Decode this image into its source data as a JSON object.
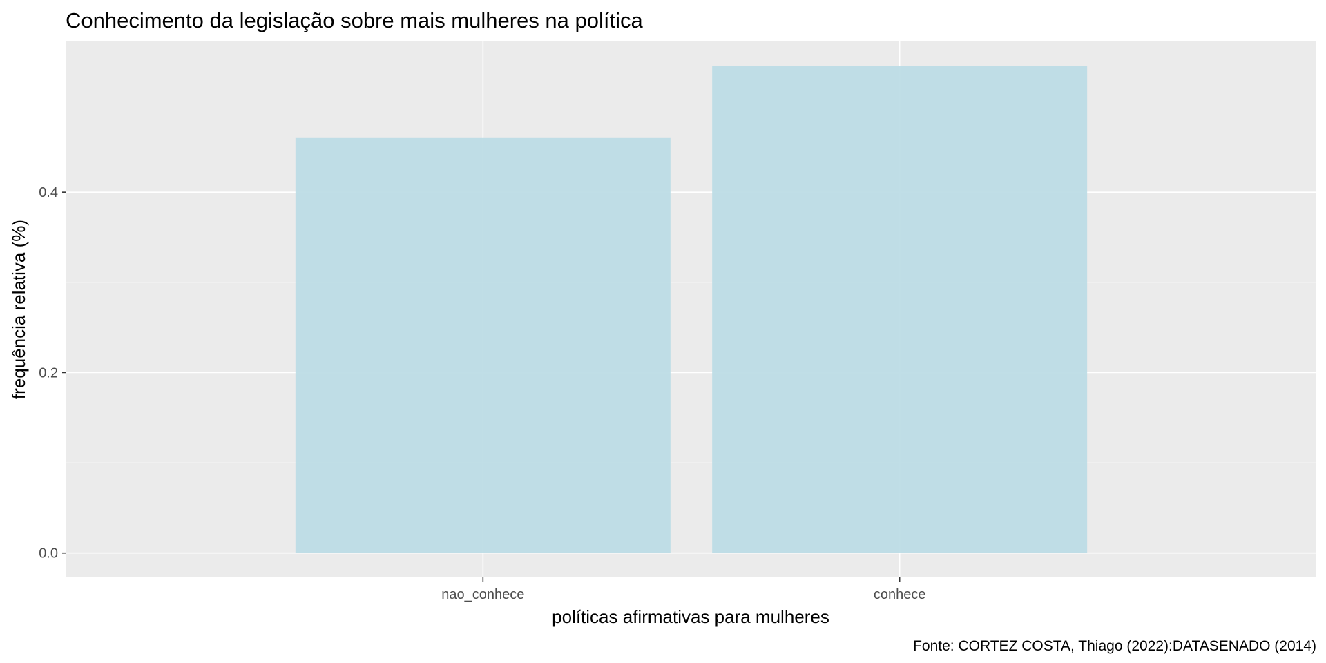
{
  "chart_data": {
    "type": "bar",
    "title": "Conhecimento da legislação sobre mais mulheres na política",
    "xlabel": "políticas afirmativas para mulheres",
    "ylabel": "frequência relativa (%)",
    "caption": "Fonte: CORTEZ COSTA, Thiago (2022):DATASENADO (2014)",
    "categories": [
      "nao_conhece",
      "conhece"
    ],
    "values": [
      0.46,
      0.54
    ],
    "ylim": [
      -0.027,
      0.567
    ],
    "yticks": [
      0.0,
      0.2,
      0.4
    ],
    "ytick_labels": [
      "0.0",
      "0.2",
      "0.4"
    ],
    "minor_yticks": [
      0.1,
      0.3,
      0.5
    ],
    "grid": true,
    "legend": "none",
    "colors": {
      "bar": "#bbdce5",
      "panel": "#ebebeb",
      "grid": "#ffffff",
      "tick": "#333333"
    }
  }
}
